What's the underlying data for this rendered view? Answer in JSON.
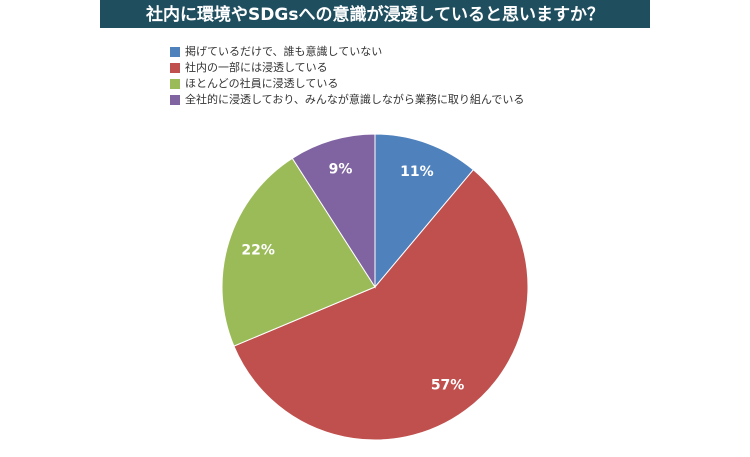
{
  "chart_data": {
    "type": "pie",
    "title": "社内に環境やSDGsへの意識が浸透していると思いますか？",
    "categories": [
      "掲げているだけで、誰も意識していない",
      "社内の一部には浸透している",
      "ほとんどの社員に浸透している",
      "全社的に浸透しており、みんなが意識しながら業務に取り組んでいる"
    ],
    "values": [
      11,
      57,
      22,
      9
    ],
    "value_labels": [
      "11%",
      "57%",
      "22%",
      "9%"
    ],
    "colors": [
      "#4f81bd",
      "#c0504d",
      "#9bbb59",
      "#8064a2"
    ]
  }
}
